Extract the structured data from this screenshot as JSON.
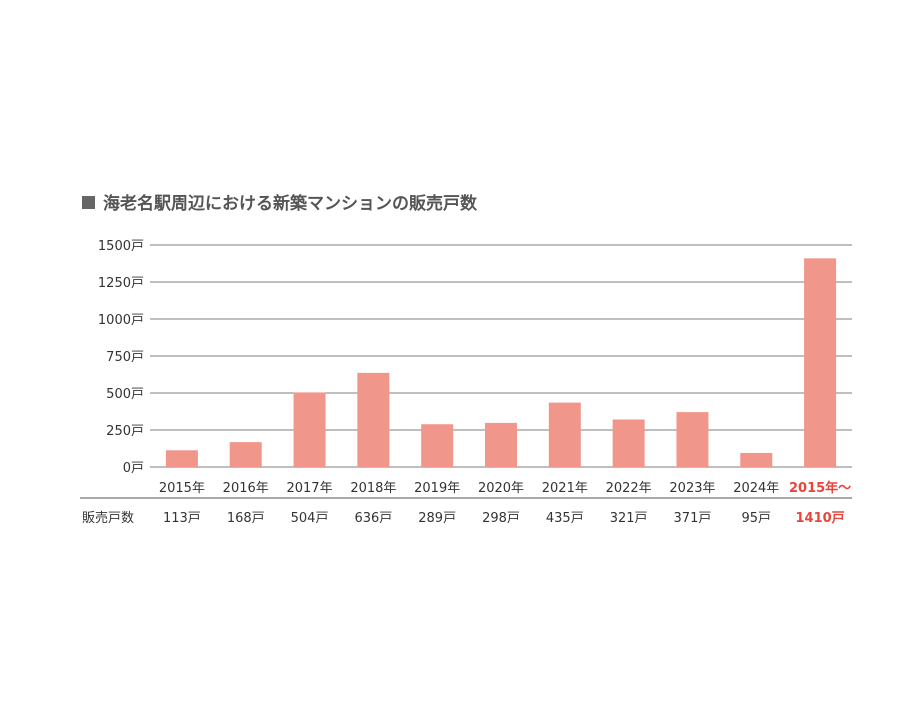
{
  "chart_data": {
    "type": "bar",
    "title": "海老名駅周辺における新築マンションの販売戸数",
    "categories": [
      "2015年",
      "2016年",
      "2017年",
      "2018年",
      "2019年",
      "2020年",
      "2021年",
      "2022年",
      "2023年",
      "2024年",
      "2015年～"
    ],
    "values": [
      113,
      168,
      504,
      636,
      289,
      298,
      435,
      321,
      371,
      95,
      1410
    ],
    "value_labels": [
      "113戸",
      "168戸",
      "504戸",
      "636戸",
      "289戸",
      "298戸",
      "435戸",
      "321戸",
      "371戸",
      "95戸",
      "1410戸"
    ],
    "highlight_index": 10,
    "row_label": "販売戸数",
    "yticks": [
      0,
      250,
      500,
      750,
      1000,
      1250,
      1500
    ],
    "ytick_labels": [
      "0戸",
      "250戸",
      "500戸",
      "750戸",
      "1000戸",
      "1250戸",
      "1500戸"
    ],
    "ylim": [
      0,
      1500
    ],
    "grid": true,
    "colors": {
      "bar": "#f0968a",
      "highlight_text": "#e8453c",
      "title_marker": "#666666"
    }
  }
}
